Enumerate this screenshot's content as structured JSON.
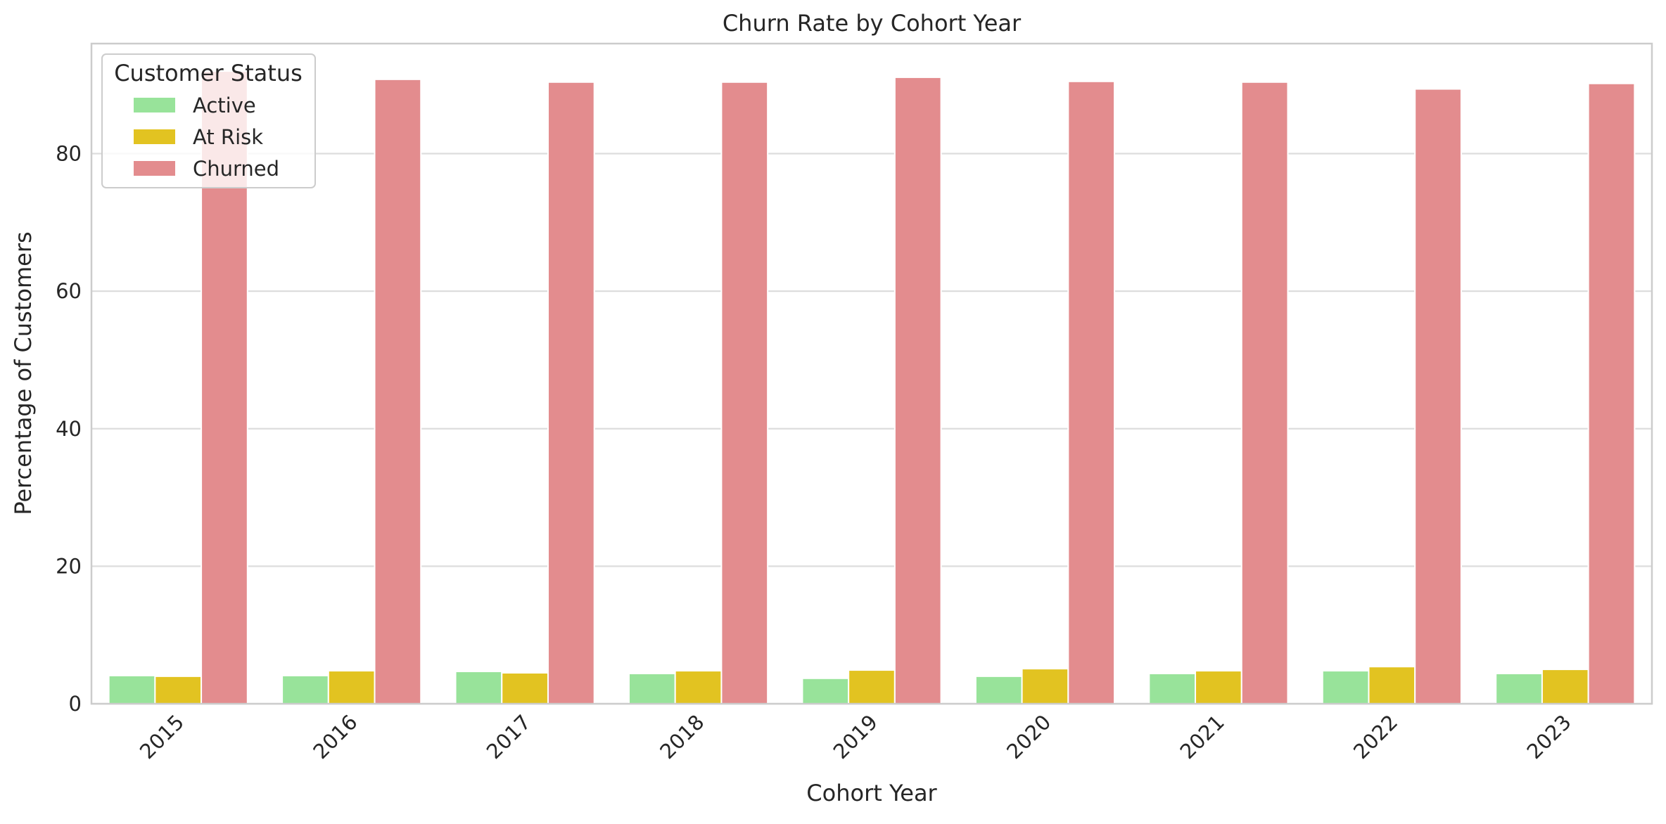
{
  "chart_data": {
    "type": "bar",
    "title": "Churn Rate by Cohort Year",
    "xlabel": "Cohort Year",
    "ylabel": "Percentage of Customers",
    "categories": [
      "2015",
      "2016",
      "2017",
      "2018",
      "2019",
      "2020",
      "2021",
      "2022",
      "2023"
    ],
    "series": [
      {
        "name": "Active",
        "color": "#98e39a",
        "values": [
          4.1,
          4.1,
          4.7,
          4.4,
          3.7,
          4.0,
          4.4,
          4.8,
          4.4
        ]
      },
      {
        "name": "At Risk",
        "color": "#e2c321",
        "values": [
          4.0,
          4.8,
          4.5,
          4.8,
          4.9,
          5.1,
          4.8,
          5.4,
          5.0
        ]
      },
      {
        "name": "Churned",
        "color": "#e38c8e",
        "values": [
          92.0,
          90.8,
          90.4,
          90.4,
          91.1,
          90.5,
          90.4,
          89.4,
          90.2
        ]
      }
    ],
    "ylim": [
      0,
      96
    ],
    "yticks": [
      "0",
      "20",
      "40",
      "60",
      "80"
    ],
    "grid": "horizontal",
    "legend": {
      "title": "Customer Status",
      "position": "top-left"
    }
  }
}
